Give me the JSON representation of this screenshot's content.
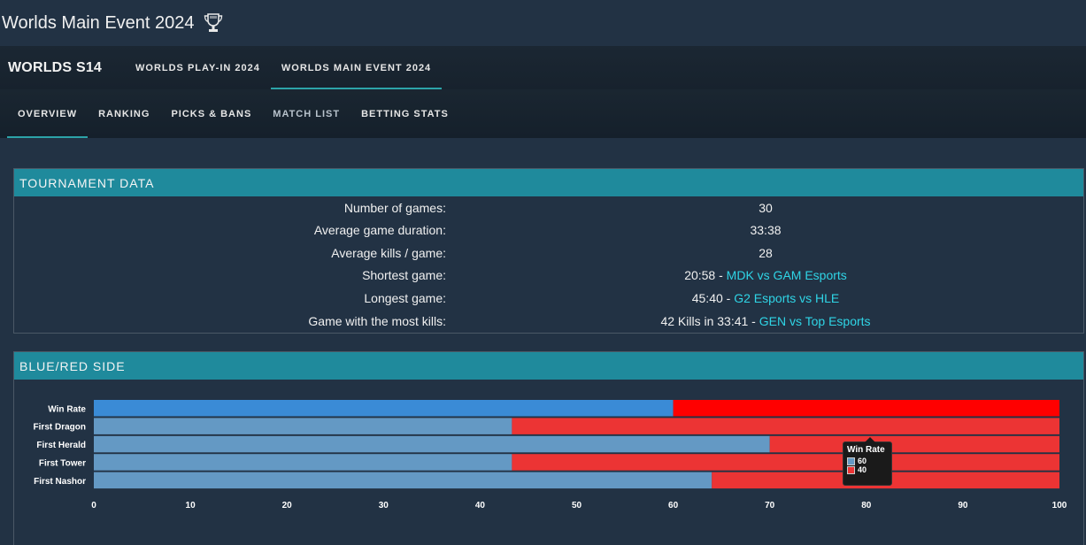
{
  "header": {
    "title": "Worlds Main Event 2024",
    "icon": "trophy-icon"
  },
  "nav_primary": {
    "brand": "WORLDS S14",
    "tabs": [
      {
        "label": "WORLDS PLAY-IN 2024",
        "active": false
      },
      {
        "label": "WORLDS MAIN EVENT 2024",
        "active": true
      }
    ]
  },
  "nav_secondary": {
    "tabs": [
      {
        "label": "OVERVIEW",
        "active": true
      },
      {
        "label": "RANKING",
        "active": false
      },
      {
        "label": "PICKS & BANS",
        "active": false
      },
      {
        "label": "MATCH LIST",
        "active": false
      },
      {
        "label": "BETTING STATS",
        "active": false
      }
    ]
  },
  "tournament_data": {
    "heading": "TOURNAMENT DATA",
    "rows": [
      {
        "label": "Number of games:",
        "value": "30",
        "link": ""
      },
      {
        "label": "Average game duration:",
        "value": "33:38",
        "link": ""
      },
      {
        "label": "Average kills / game:",
        "value": "28",
        "link": ""
      },
      {
        "label": "Shortest game:",
        "value": "20:58 - ",
        "link": "MDK vs GAM Esports"
      },
      {
        "label": "Longest game:",
        "value": "45:40 - ",
        "link": "G2 Esports vs HLE"
      },
      {
        "label": "Game with the most kills:",
        "value": "42 Kills in 33:41 - ",
        "link": "GEN vs Top Esports"
      }
    ]
  },
  "side_section": {
    "heading": "BLUE/RED SIDE"
  },
  "chart_data": {
    "type": "bar",
    "orientation": "horizontal",
    "stacked": true,
    "categories": [
      "Win Rate",
      "First Dragon",
      "First Herald",
      "First Tower",
      "First Nashor"
    ],
    "series": [
      {
        "name": "Blue",
        "values": [
          60,
          43.3,
          70,
          43.3,
          64
        ]
      },
      {
        "name": "Red",
        "values": [
          40,
          56.7,
          30,
          56.7,
          36
        ]
      }
    ],
    "xlim": [
      0,
      100
    ],
    "xticks": [
      0,
      10,
      20,
      30,
      40,
      50,
      60,
      70,
      80,
      90,
      100
    ],
    "colors": {
      "blue_highlight": "#3a8bd6",
      "blue": "#6499c4",
      "red_highlight": "#ff0000",
      "red": "#ec3434"
    },
    "tooltip": {
      "title": "Win Rate",
      "blue_value": "60",
      "red_value": "40"
    }
  }
}
